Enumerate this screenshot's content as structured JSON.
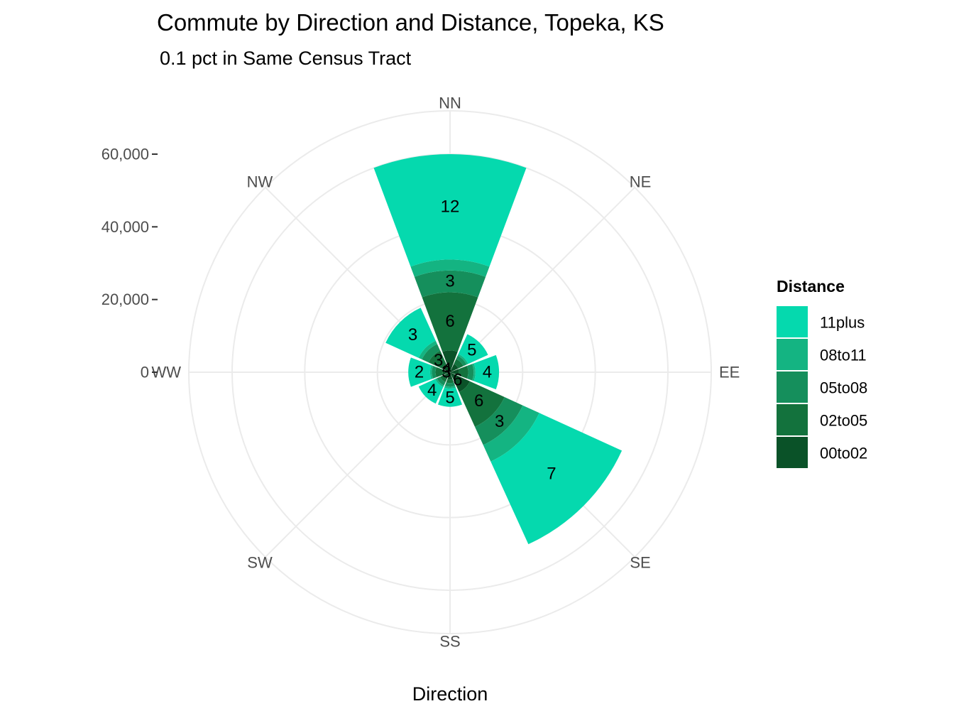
{
  "chart_data": {
    "type": "bar",
    "coordinate_system": "polar",
    "title": "Commute by Direction and Distance, Topeka, KS",
    "subtitle": "0.1 pct in Same Census Tract",
    "xlabel": "Direction",
    "ylabel": "",
    "categories": [
      "NN",
      "NE",
      "EE",
      "SE",
      "SS",
      "SW",
      "WW",
      "NW"
    ],
    "y_ticks": [
      0,
      20000,
      40000,
      60000
    ],
    "y_tick_labels": [
      "0",
      "20,000",
      "40,000",
      "60,000"
    ],
    "ylim": [
      0,
      70000
    ],
    "grid": true,
    "legend": {
      "title": "Distance",
      "position": "right"
    },
    "series": [
      {
        "name": "00to02",
        "color": "#0a5228",
        "values": [
          6000,
          2500,
          2500,
          6000,
          2000,
          2000,
          2000,
          2500
        ]
      },
      {
        "name": "02to05",
        "color": "#13723d",
        "values": [
          16000,
          1500,
          2500,
          10500,
          1000,
          1000,
          2000,
          4000
        ]
      },
      {
        "name": "05to08",
        "color": "#158f5c",
        "values": [
          6000,
          1000,
          1500,
          5500,
          1000,
          1000,
          1000,
          2000
        ]
      },
      {
        "name": "08to11",
        "color": "#14b482",
        "values": [
          3000,
          500,
          500,
          5000,
          500,
          500,
          500,
          1000
        ]
      },
      {
        "name": "11plus",
        "color": "#05d9ae",
        "values": [
          29000,
          6000,
          6500,
          25000,
          5000,
          5000,
          6000,
          10000
        ]
      }
    ],
    "bar_labels": [
      {
        "category": "NN",
        "series": "02to05",
        "text": "6"
      },
      {
        "category": "NN",
        "series": "05to08",
        "text": "3"
      },
      {
        "category": "NN",
        "series": "11plus",
        "text": "12"
      },
      {
        "category": "NE",
        "series": "11plus",
        "text": "5"
      },
      {
        "category": "EE",
        "series": "11plus",
        "text": "4"
      },
      {
        "category": "SE",
        "series": "00to02",
        "text": "6"
      },
      {
        "category": "SE",
        "series": "02to05",
        "text": "6"
      },
      {
        "category": "SE",
        "series": "05to08",
        "text": "3"
      },
      {
        "category": "SE",
        "series": "11plus",
        "text": "7"
      },
      {
        "category": "SS",
        "series": "11plus",
        "text": "5"
      },
      {
        "category": "SW",
        "series": "11plus",
        "text": "4"
      },
      {
        "category": "WW",
        "series": "00to02",
        "text": "3"
      },
      {
        "category": "WW",
        "series": "11plus",
        "text": "2"
      },
      {
        "category": "NW",
        "series": "00to02",
        "text": "4"
      },
      {
        "category": "NW",
        "series": "02to05",
        "text": "3"
      },
      {
        "category": "NW",
        "series": "11plus",
        "text": "3"
      }
    ]
  }
}
